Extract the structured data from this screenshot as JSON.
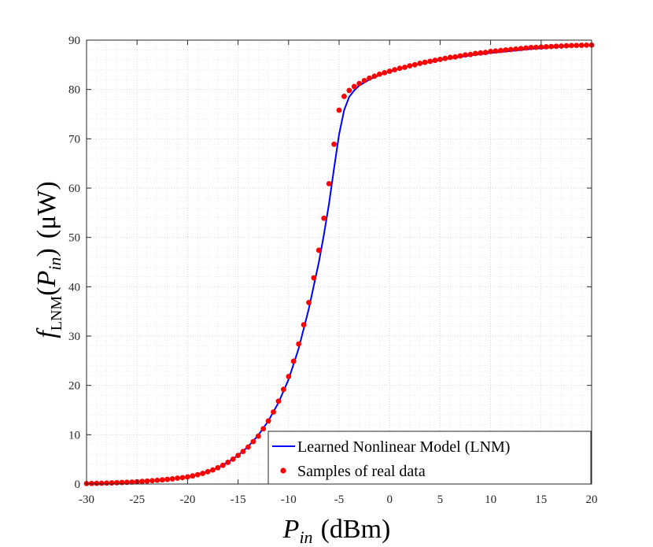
{
  "chart_data": {
    "type": "line",
    "xlabel": {
      "main": "P",
      "sub": "in",
      "unit": "(dBm)"
    },
    "ylabel": {
      "func": "f",
      "func_sub": "LNM",
      "arg": "P",
      "arg_sub": "in",
      "unit": "(μW)"
    },
    "xlim": [
      -30,
      20
    ],
    "ylim": [
      0,
      90
    ],
    "x_ticks": [
      -30,
      -25,
      -20,
      -15,
      -10,
      -5,
      0,
      5,
      10,
      15,
      20
    ],
    "y_ticks": [
      0,
      10,
      20,
      30,
      40,
      50,
      60,
      70,
      80,
      90
    ],
    "grid": true,
    "minor_grid": true,
    "legend_position": "bottom-right",
    "series": [
      {
        "name": "Learned Nonlinear Model (LNM)",
        "kind": "line",
        "color": "#0000ff",
        "x": [
          -30,
          -28,
          -26,
          -24,
          -22,
          -20,
          -19,
          -18,
          -17,
          -16,
          -15,
          -14,
          -13,
          -12,
          -11,
          -10,
          -9,
          -8,
          -7,
          -6.5,
          -6,
          -5.5,
          -5,
          -4.5,
          -4,
          -3.5,
          -3,
          -2.5,
          -2,
          -1,
          0,
          1,
          2,
          4,
          6,
          8,
          10,
          12,
          14,
          16,
          18,
          20
        ],
        "y": [
          0.1,
          0.2,
          0.35,
          0.6,
          0.9,
          1.4,
          1.9,
          2.5,
          3.3,
          4.4,
          5.8,
          7.6,
          9.9,
          12.8,
          16.5,
          21.2,
          27.5,
          35.5,
          45.0,
          50.6,
          56.8,
          64.0,
          70.9,
          75.8,
          78.5,
          79.8,
          80.8,
          81.4,
          82.0,
          82.9,
          83.6,
          84.2,
          84.8,
          85.6,
          86.3,
          86.9,
          87.4,
          87.8,
          88.2,
          88.5,
          88.8,
          89.0
        ]
      },
      {
        "name": "Samples of real data",
        "kind": "scatter",
        "color": "#ff0000",
        "x": [
          -30,
          -29.5,
          -29,
          -28.5,
          -28,
          -27.5,
          -27,
          -26.5,
          -26,
          -25.5,
          -25,
          -24.5,
          -24,
          -23.5,
          -23,
          -22.5,
          -22,
          -21.5,
          -21,
          -20.5,
          -20,
          -19.5,
          -19,
          -18.5,
          -18,
          -17.5,
          -17,
          -16.5,
          -16,
          -15.5,
          -15,
          -14.5,
          -14,
          -13.5,
          -13,
          -12.5,
          -12,
          -11.5,
          -11,
          -10.5,
          -10,
          -9.5,
          -9,
          -8.5,
          -8,
          -7.5,
          -7,
          -6.5,
          -6,
          -5.5,
          -5,
          -4.5,
          -4,
          -3.5,
          -3,
          -2.5,
          -2,
          -1.5,
          -1,
          -0.5,
          0,
          0.5,
          1,
          1.5,
          2,
          2.5,
          3,
          3.5,
          4,
          4.5,
          5,
          5.5,
          6,
          6.5,
          7,
          7.5,
          8,
          8.5,
          9,
          9.5,
          10,
          10.5,
          11,
          11.5,
          12,
          12.5,
          13,
          13.5,
          14,
          14.5,
          15,
          15.5,
          16,
          16.5,
          17,
          17.5,
          18,
          18.5,
          19,
          19.5,
          20
        ],
        "y": [
          0.1,
          0.12,
          0.14,
          0.16,
          0.2,
          0.23,
          0.27,
          0.31,
          0.35,
          0.4,
          0.46,
          0.53,
          0.6,
          0.68,
          0.76,
          0.85,
          0.95,
          1.05,
          1.2,
          1.3,
          1.45,
          1.65,
          1.9,
          2.15,
          2.5,
          2.85,
          3.3,
          3.8,
          4.4,
          5.05,
          5.8,
          6.6,
          7.5,
          8.6,
          9.7,
          11.2,
          12.8,
          14.6,
          16.8,
          19.2,
          21.8,
          24.9,
          28.4,
          32.3,
          36.8,
          41.8,
          47.4,
          53.9,
          60.9,
          68.9,
          75.8,
          78.6,
          79.8,
          80.6,
          81.2,
          81.8,
          82.3,
          82.7,
          83.1,
          83.4,
          83.7,
          84.0,
          84.3,
          84.5,
          84.8,
          85.0,
          85.3,
          85.5,
          85.7,
          85.9,
          86.1,
          86.3,
          86.5,
          86.6,
          86.8,
          87.0,
          87.1,
          87.3,
          87.4,
          87.5,
          87.7,
          87.8,
          87.9,
          88.0,
          88.1,
          88.2,
          88.3,
          88.4,
          88.5,
          88.55,
          88.6,
          88.65,
          88.7,
          88.75,
          88.8,
          88.85,
          88.9,
          88.92,
          88.95,
          88.98,
          89.0
        ]
      }
    ]
  }
}
